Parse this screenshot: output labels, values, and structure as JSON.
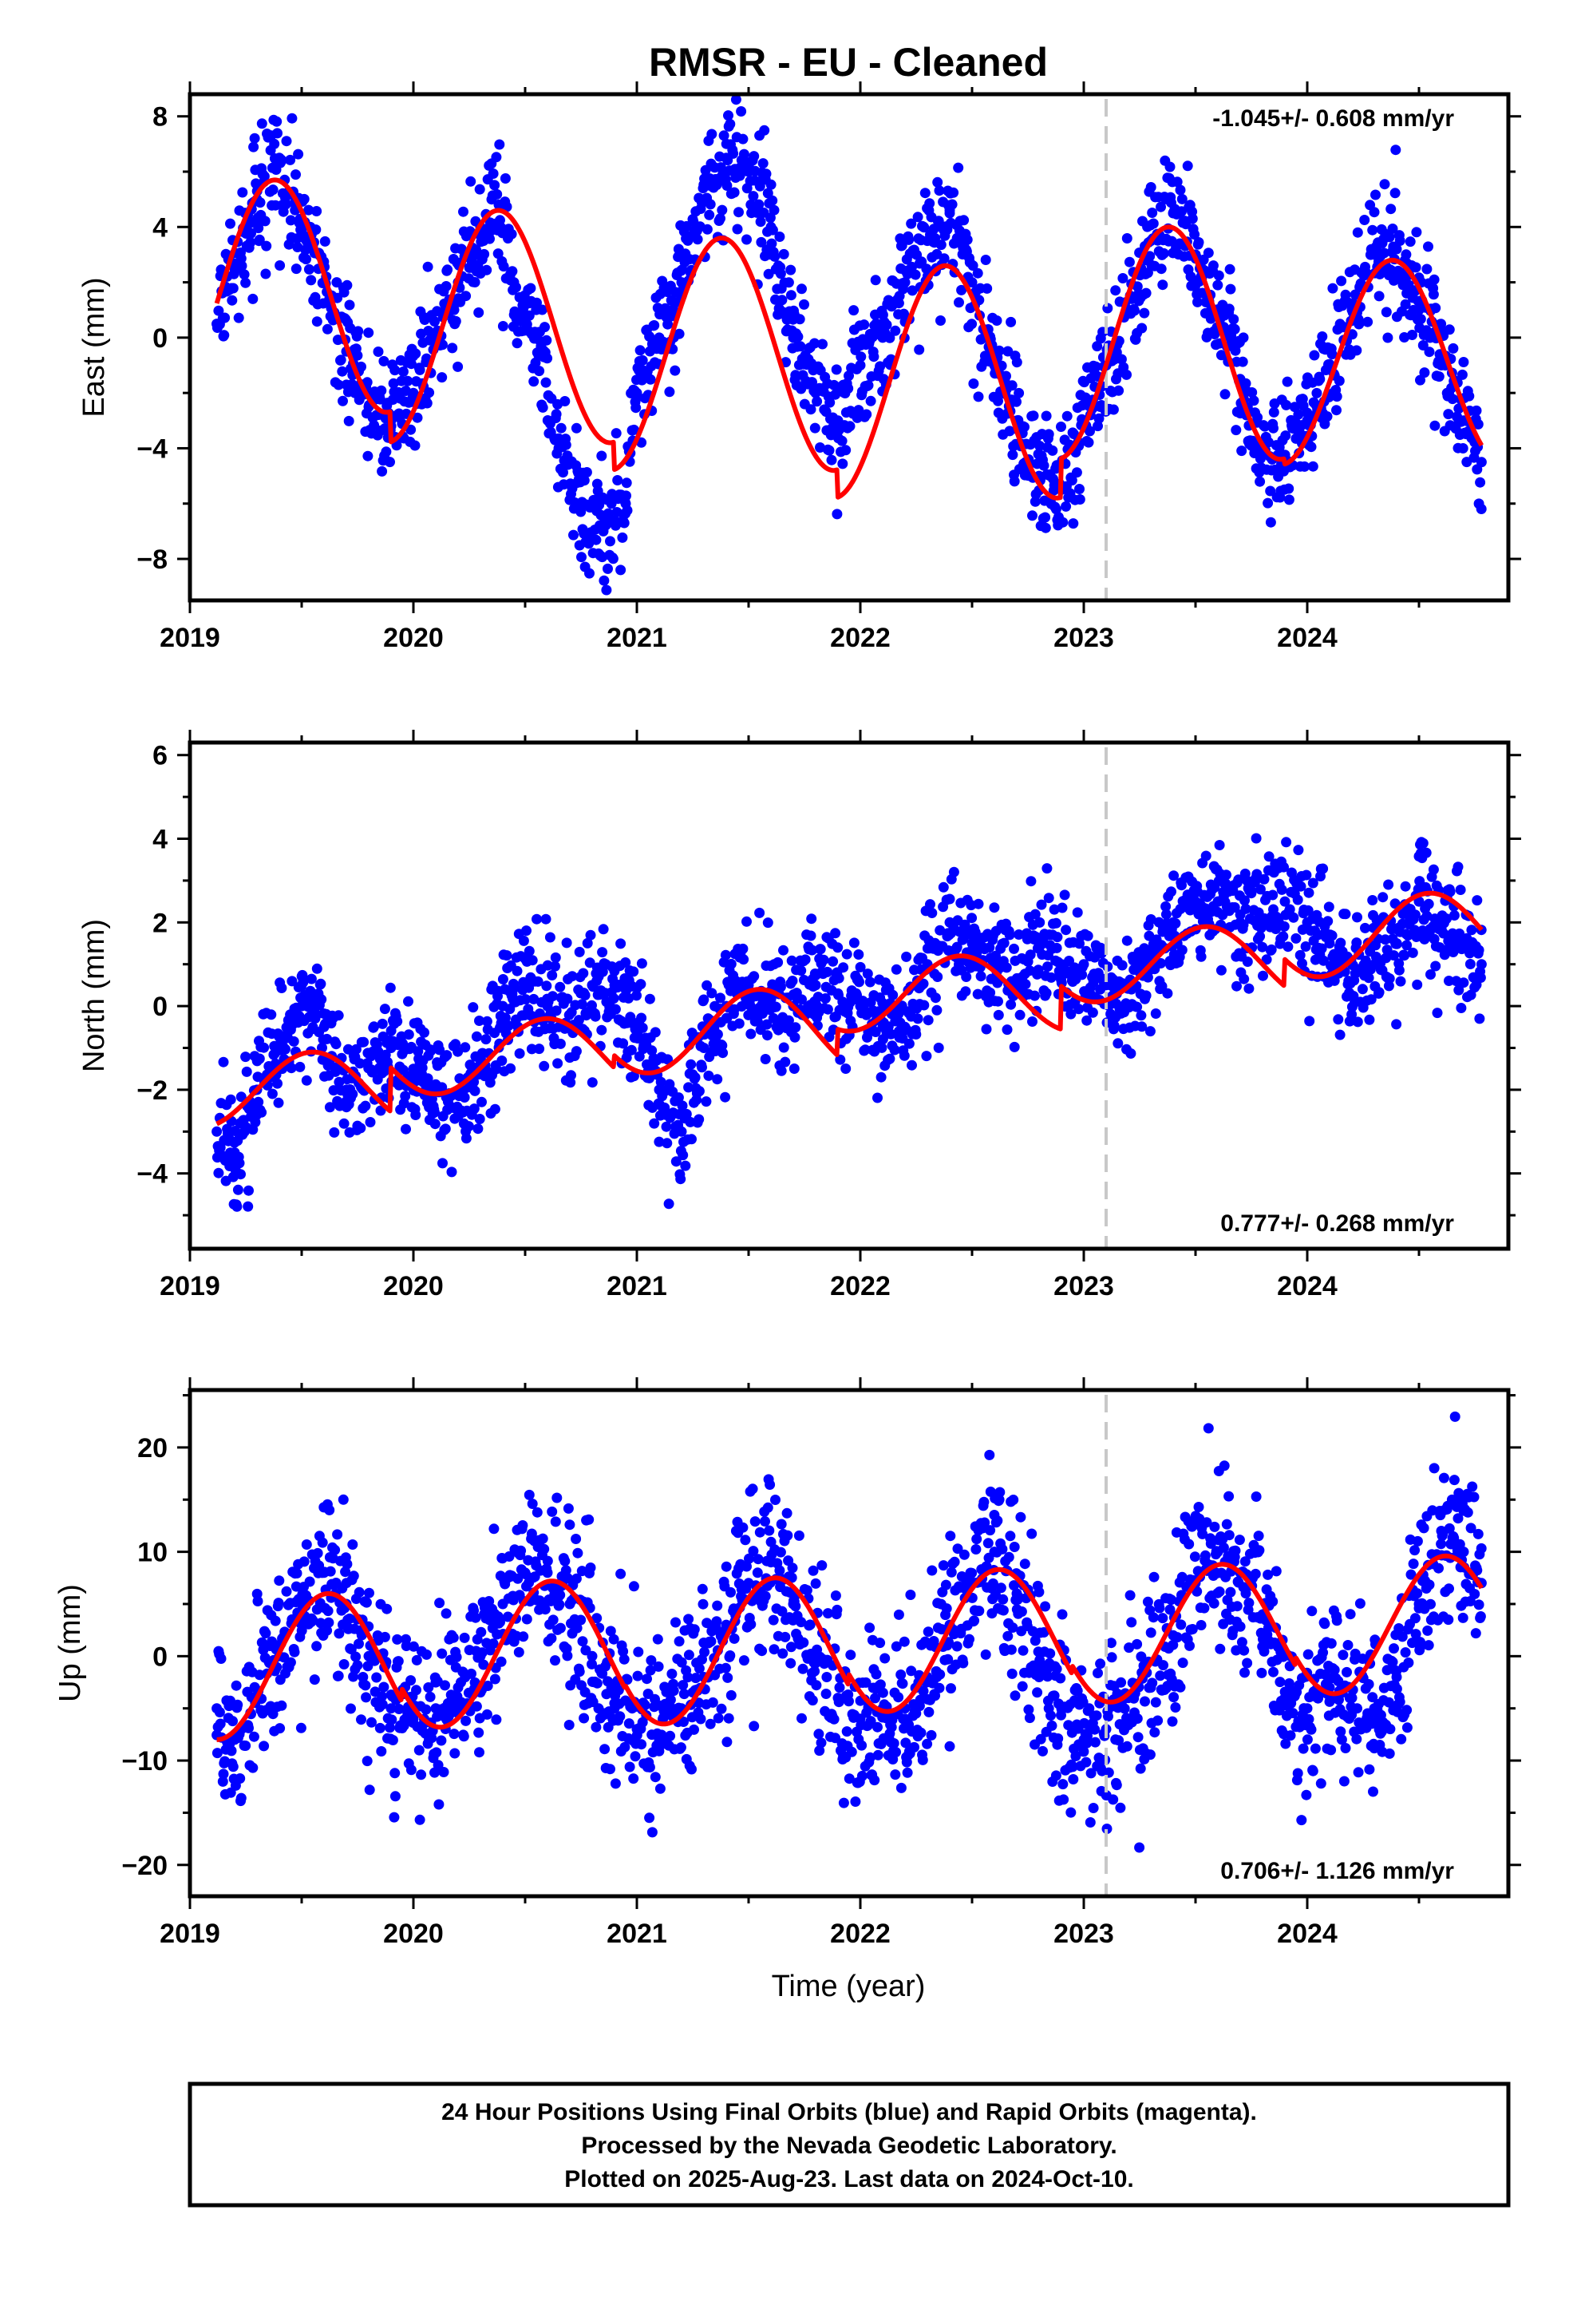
{
  "figure": {
    "title": "RMSR  - EU - Cleaned",
    "xlabel": "Time (year)",
    "colors": {
      "points": "#0000ff",
      "model": "#ff0000",
      "dashed_line": "#c8c8c8",
      "frame": "#000000"
    }
  },
  "chart_data": [
    {
      "type": "scatter",
      "component": "East",
      "ylabel": "East (mm)",
      "rate_label": "-1.045+/- 0.608 mm/yr",
      "rate_label_position": "top-right",
      "xlim": [
        2019.0,
        2024.9
      ],
      "ylim": [
        -9.5,
        8.8
      ],
      "xticks": [
        2019,
        2020,
        2021,
        2022,
        2023,
        2024
      ],
      "yticks": [
        -8,
        -4,
        0,
        4,
        8
      ],
      "ytick_labels": [
        "−8",
        "−4",
        "0",
        "4",
        "8"
      ],
      "marker_year": 2023.1,
      "data_range": [
        2019.12,
        2024.78
      ],
      "series": [
        {
          "name": "daily positions",
          "style": "points",
          "points": [
            [
              2019.12,
              0.5
            ],
            [
              2019.2,
              2.5
            ],
            [
              2019.3,
              5
            ],
            [
              2019.4,
              6.5
            ],
            [
              2019.5,
              4
            ],
            [
              2019.6,
              2
            ],
            [
              2019.7,
              -0.5
            ],
            [
              2019.8,
              -2.5
            ],
            [
              2019.9,
              -3
            ],
            [
              2020.0,
              -2
            ],
            [
              2020.1,
              0
            ],
            [
              2020.2,
              2
            ],
            [
              2020.3,
              4
            ],
            [
              2020.35,
              5
            ],
            [
              2020.45,
              2
            ],
            [
              2020.55,
              0
            ],
            [
              2020.65,
              -4
            ],
            [
              2020.75,
              -6
            ],
            [
              2020.85,
              -7
            ],
            [
              2020.95,
              -6
            ],
            [
              2021.0,
              -2
            ],
            [
              2021.1,
              0
            ],
            [
              2021.2,
              2
            ],
            [
              2021.3,
              5
            ],
            [
              2021.4,
              6.5
            ],
            [
              2021.5,
              6
            ],
            [
              2021.6,
              4
            ],
            [
              2021.7,
              0
            ],
            [
              2021.8,
              -2
            ],
            [
              2021.9,
              -3
            ],
            [
              2022.0,
              -1
            ],
            [
              2022.1,
              0
            ],
            [
              2022.2,
              2
            ],
            [
              2022.3,
              3.5
            ],
            [
              2022.4,
              4.5
            ],
            [
              2022.5,
              2
            ],
            [
              2022.6,
              -1
            ],
            [
              2022.7,
              -3
            ],
            [
              2022.8,
              -5
            ],
            [
              2022.9,
              -5.5
            ],
            [
              2023.0,
              -3
            ],
            [
              2023.1,
              -1
            ],
            [
              2023.2,
              1
            ],
            [
              2023.3,
              3.5
            ],
            [
              2023.4,
              4.5
            ],
            [
              2023.5,
              3
            ],
            [
              2023.6,
              1
            ],
            [
              2023.7,
              -1.5
            ],
            [
              2023.8,
              -4
            ],
            [
              2023.9,
              -4.5
            ],
            [
              2024.0,
              -3
            ],
            [
              2024.1,
              -1
            ],
            [
              2024.2,
              1
            ],
            [
              2024.3,
              3
            ],
            [
              2024.4,
              3.2
            ],
            [
              2024.5,
              1
            ],
            [
              2024.6,
              -1
            ],
            [
              2024.7,
              -3
            ],
            [
              2024.78,
              -4.5
            ]
          ]
        },
        {
          "name": "model",
          "style": "line",
          "trend": -1.045,
          "offset": 0.0,
          "annual": [
            {
              "start": 2019.12,
              "end": 2019.9,
              "mean": 1.5,
              "amp": 4.2,
              "peak": 2019.38
            },
            {
              "start": 2019.9,
              "end": 2020.9,
              "mean": 0.4,
              "amp": 4.2,
              "peak": 2020.38
            },
            {
              "start": 2020.9,
              "end": 2021.9,
              "mean": -0.6,
              "amp": 4.2,
              "peak": 2021.38
            },
            {
              "start": 2021.9,
              "end": 2022.9,
              "mean": -1.6,
              "amp": 4.2,
              "peak": 2022.38
            },
            {
              "start": 2022.9,
              "end": 2023.9,
              "mean": -0.2,
              "amp": 4.2,
              "peak": 2023.38
            },
            {
              "start": 2023.9,
              "end": 2024.78,
              "mean": -0.9,
              "amp": 3.7,
              "peak": 2024.38
            }
          ]
        }
      ]
    },
    {
      "type": "scatter",
      "component": "North",
      "ylabel": "North (mm)",
      "rate_label": "0.777+/- 0.268 mm/yr",
      "rate_label_position": "bottom-right",
      "xlim": [
        2019.0,
        2024.9
      ],
      "ylim": [
        -5.8,
        6.3
      ],
      "xticks": [
        2019,
        2020,
        2021,
        2022,
        2023,
        2024
      ],
      "yticks": [
        -4,
        -2,
        0,
        2,
        4,
        6
      ],
      "ytick_labels": [
        "−4",
        "−2",
        "0",
        "2",
        "4",
        "6"
      ],
      "marker_year": 2023.1,
      "data_range": [
        2019.12,
        2024.78
      ],
      "series": [
        {
          "name": "daily positions",
          "style": "points",
          "points": [
            [
              2019.12,
              -3
            ],
            [
              2019.2,
              -3.5
            ],
            [
              2019.3,
              -2
            ],
            [
              2019.4,
              -1
            ],
            [
              2019.5,
              0
            ],
            [
              2019.6,
              -0.5
            ],
            [
              2019.7,
              -2
            ],
            [
              2019.9,
              -1
            ],
            [
              2020.0,
              -1.5
            ],
            [
              2020.1,
              -2
            ],
            [
              2020.2,
              -2.5
            ],
            [
              2020.3,
              -1.5
            ],
            [
              2020.4,
              0
            ],
            [
              2020.5,
              0.5
            ],
            [
              2020.6,
              0
            ],
            [
              2020.7,
              -0.5
            ],
            [
              2020.8,
              0.5
            ],
            [
              2020.9,
              0.5
            ],
            [
              2021.0,
              -0.5
            ],
            [
              2021.1,
              -2
            ],
            [
              2021.2,
              -3
            ],
            [
              2021.3,
              -1
            ],
            [
              2021.4,
              0
            ],
            [
              2021.5,
              0.5
            ],
            [
              2021.6,
              0
            ],
            [
              2021.7,
              0
            ],
            [
              2021.8,
              0.5
            ],
            [
              2021.9,
              0.3
            ],
            [
              2022.0,
              0
            ],
            [
              2022.1,
              -0.5
            ],
            [
              2022.2,
              -0.5
            ],
            [
              2022.3,
              1
            ],
            [
              2022.4,
              2
            ],
            [
              2022.5,
              1.5
            ],
            [
              2022.6,
              1
            ],
            [
              2022.7,
              0.5
            ],
            [
              2022.8,
              1.5
            ],
            [
              2022.9,
              1
            ],
            [
              2023.0,
              1
            ],
            [
              2023.1,
              0.5
            ],
            [
              2023.2,
              0
            ],
            [
              2023.3,
              1
            ],
            [
              2023.4,
              2
            ],
            [
              2023.5,
              2.5
            ],
            [
              2023.6,
              2.5
            ],
            [
              2023.7,
              2
            ],
            [
              2023.8,
              2
            ],
            [
              2023.9,
              2.5
            ],
            [
              2024.0,
              2
            ],
            [
              2024.1,
              1.5
            ],
            [
              2024.2,
              1
            ],
            [
              2024.3,
              1
            ],
            [
              2024.4,
              1.5
            ],
            [
              2024.5,
              2.5
            ],
            [
              2024.6,
              2
            ],
            [
              2024.7,
              1.5
            ],
            [
              2024.78,
              1
            ]
          ]
        },
        {
          "name": "model",
          "style": "line",
          "trend": 0.777,
          "offset": 0.0,
          "annual": [
            {
              "start": 2019.12,
              "end": 2019.9,
              "mean": -2.0,
              "amp": 0.9,
              "peak": 2019.55
            },
            {
              "start": 2019.9,
              "end": 2020.9,
              "mean": -1.2,
              "amp": 0.9,
              "peak": 2020.6
            },
            {
              "start": 2020.9,
              "end": 2021.9,
              "mean": -0.6,
              "amp": 1.0,
              "peak": 2021.55
            },
            {
              "start": 2021.9,
              "end": 2022.9,
              "mean": 0.3,
              "amp": 0.9,
              "peak": 2022.45
            },
            {
              "start": 2022.9,
              "end": 2023.9,
              "mean": 1.0,
              "amp": 0.9,
              "peak": 2023.55
            },
            {
              "start": 2023.9,
              "end": 2024.78,
              "mean": 1.7,
              "amp": 1.0,
              "peak": 2024.55
            }
          ]
        }
      ]
    },
    {
      "type": "scatter",
      "component": "Up",
      "ylabel": "Up (mm)",
      "rate_label": "0.706+/- 1.126 mm/yr",
      "rate_label_position": "bottom-right",
      "xlim": [
        2019.0,
        2024.9
      ],
      "ylim": [
        -23,
        25.5
      ],
      "xticks": [
        2019,
        2020,
        2021,
        2022,
        2023,
        2024
      ],
      "yticks": [
        -20,
        -10,
        0,
        10,
        20
      ],
      "ytick_labels": [
        "−20",
        "−10",
        "0",
        "10",
        "20"
      ],
      "marker_year": 2023.1,
      "data_range": [
        2019.12,
        2024.78
      ],
      "series": [
        {
          "name": "daily positions",
          "style": "points",
          "points": [
            [
              2019.12,
              -5
            ],
            [
              2019.2,
              -8
            ],
            [
              2019.3,
              -4
            ],
            [
              2019.4,
              0
            ],
            [
              2019.5,
              5
            ],
            [
              2019.6,
              8
            ],
            [
              2019.7,
              5
            ],
            [
              2019.8,
              0
            ],
            [
              2019.9,
              -5
            ],
            [
              2020.0,
              -6
            ],
            [
              2020.1,
              -5
            ],
            [
              2020.2,
              -3
            ],
            [
              2020.3,
              0
            ],
            [
              2020.4,
              5
            ],
            [
              2020.5,
              8
            ],
            [
              2020.6,
              8
            ],
            [
              2020.7,
              5
            ],
            [
              2020.8,
              0
            ],
            [
              2020.9,
              -5
            ],
            [
              2021.0,
              -7
            ],
            [
              2021.1,
              -8
            ],
            [
              2021.2,
              -5
            ],
            [
              2021.3,
              -2
            ],
            [
              2021.4,
              3
            ],
            [
              2021.5,
              7
            ],
            [
              2021.6,
              9
            ],
            [
              2021.7,
              5
            ],
            [
              2021.8,
              0
            ],
            [
              2021.9,
              -4
            ],
            [
              2022.0,
              -6
            ],
            [
              2022.1,
              -5
            ],
            [
              2022.2,
              -6
            ],
            [
              2022.3,
              -2
            ],
            [
              2022.4,
              3
            ],
            [
              2022.5,
              7
            ],
            [
              2022.6,
              10
            ],
            [
              2022.7,
              6
            ],
            [
              2022.8,
              -2
            ],
            [
              2022.9,
              -5
            ],
            [
              2023.0,
              -8
            ],
            [
              2023.1,
              -7
            ],
            [
              2023.2,
              -4
            ],
            [
              2023.3,
              -3
            ],
            [
              2023.4,
              2
            ],
            [
              2023.5,
              7
            ],
            [
              2023.6,
              10
            ],
            [
              2023.7,
              8
            ],
            [
              2023.8,
              4
            ],
            [
              2023.9,
              -4
            ],
            [
              2024.0,
              -5
            ],
            [
              2024.1,
              -3
            ],
            [
              2024.2,
              -4
            ],
            [
              2024.3,
              -5
            ],
            [
              2024.4,
              -2
            ],
            [
              2024.5,
              5
            ],
            [
              2024.6,
              12
            ],
            [
              2024.7,
              10
            ],
            [
              2024.78,
              7
            ]
          ]
        },
        {
          "name": "model",
          "style": "line",
          "trend": 0.706,
          "offset": 0.0,
          "annual": [
            {
              "start": 2019.12,
              "end": 2019.95,
              "mean": -1.0,
              "amp": 7.0,
              "peak": 2019.62
            },
            {
              "start": 2019.95,
              "end": 2020.95,
              "mean": 0.2,
              "amp": 7.0,
              "peak": 2020.62
            },
            {
              "start": 2020.95,
              "end": 2021.95,
              "mean": 0.5,
              "amp": 7.0,
              "peak": 2021.62
            },
            {
              "start": 2021.95,
              "end": 2022.95,
              "mean": 1.5,
              "amp": 6.8,
              "peak": 2022.62
            },
            {
              "start": 2022.95,
              "end": 2023.95,
              "mean": 2.2,
              "amp": 6.6,
              "peak": 2023.62
            },
            {
              "start": 2023.95,
              "end": 2024.78,
              "mean": 3.0,
              "amp": 6.6,
              "peak": 2024.62
            }
          ]
        }
      ]
    }
  ],
  "footer": {
    "line1": "24 Hour Positions Using Final Orbits (blue) and Rapid Orbits (magenta).",
    "line2": "Processed by the Nevada Geodetic Laboratory.",
    "line3": "Plotted on 2025-Aug-23. Last data on 2024-Oct-10."
  }
}
